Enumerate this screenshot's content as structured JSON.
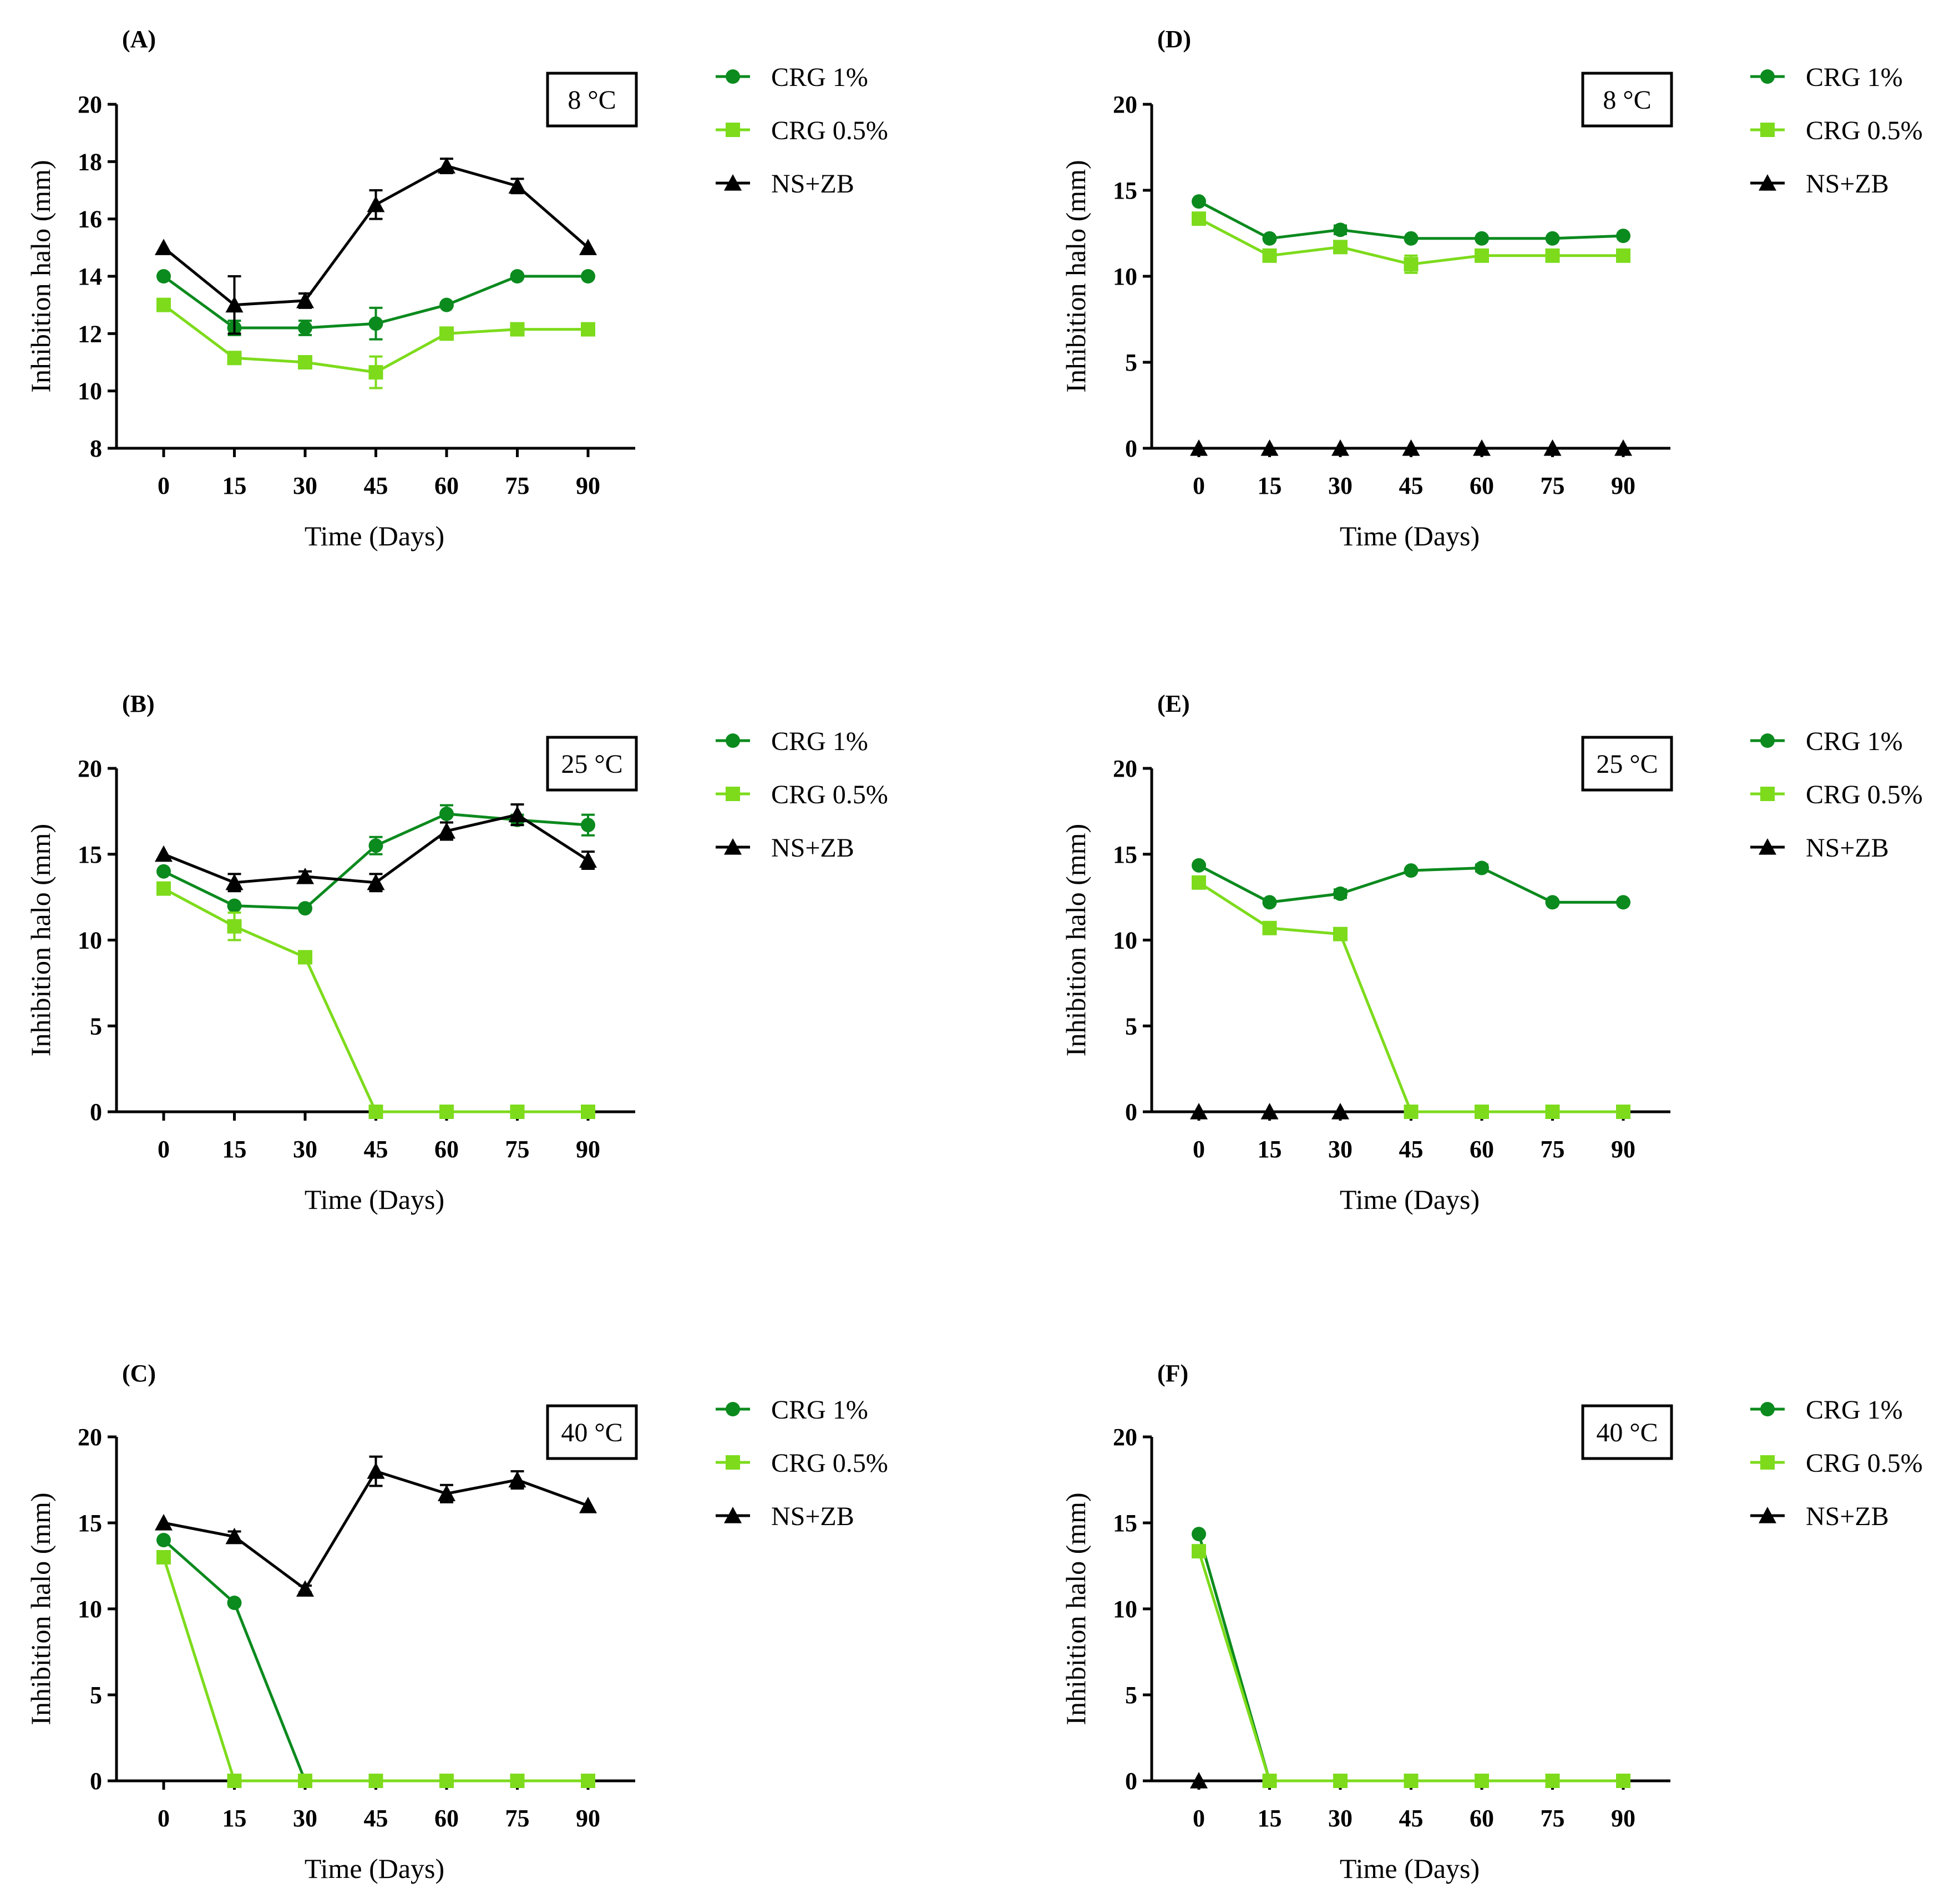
{
  "colors": {
    "crg1": "#0b8a1e",
    "crg05": "#7ddb1c",
    "nszb": "#000000"
  },
  "chart_data": [
    {
      "panel": "(A)",
      "temperature": "8 °C",
      "type": "line",
      "xlabel": "Time (Days)",
      "ylabel": "Inhibition halo (mm)",
      "xticks": [
        "0",
        "15",
        "30",
        "45",
        "60",
        "75",
        "90"
      ],
      "xlim": [
        0,
        90
      ],
      "ylim": [
        8,
        20
      ],
      "yticks": [
        "8",
        "10",
        "12",
        "14",
        "16",
        "18",
        "20"
      ],
      "legend": [
        "CRG 1%",
        "CRG 0.5%",
        "NS+ZB"
      ],
      "series": [
        {
          "name": "CRG 1%",
          "color": "#0b8a1e",
          "marker": "circle",
          "x": [
            0,
            15,
            30,
            45,
            60,
            75,
            90
          ],
          "y": [
            14,
            12.2,
            12.2,
            12.35,
            13,
            14,
            14
          ],
          "err": [
            0,
            0.25,
            0.25,
            0.55,
            0,
            0,
            0
          ]
        },
        {
          "name": "CRG 0.5%",
          "color": "#7ddb1c",
          "marker": "square",
          "x": [
            0,
            15,
            30,
            45,
            60,
            75,
            90
          ],
          "y": [
            13,
            11.15,
            11,
            10.65,
            12,
            12.15,
            12.15
          ],
          "err": [
            0,
            0.2,
            0,
            0.55,
            0,
            0.15,
            0.15
          ]
        },
        {
          "name": "NS+ZB",
          "color": "#000000",
          "marker": "triangle",
          "x": [
            0,
            15,
            30,
            45,
            60,
            75,
            90
          ],
          "y": [
            15,
            13,
            13.15,
            16.5,
            17.85,
            17.15,
            15
          ],
          "err": [
            0,
            1,
            0.25,
            0.5,
            0.25,
            0.25,
            0
          ]
        }
      ]
    },
    {
      "panel": "(B)",
      "temperature": "25 °C",
      "type": "line",
      "xlabel": "Time (Days)",
      "ylabel": "Inhibition halo (mm)",
      "xticks": [
        "0",
        "15",
        "30",
        "45",
        "60",
        "75",
        "90"
      ],
      "xlim": [
        0,
        90
      ],
      "ylim": [
        0,
        20
      ],
      "yticks": [
        "0",
        "5",
        "10",
        "15",
        "20"
      ],
      "legend": [
        "CRG 1%",
        "CRG 0.5%",
        "NS+ZB"
      ],
      "series": [
        {
          "name": "CRG 1%",
          "color": "#0b8a1e",
          "marker": "circle",
          "x": [
            0,
            15,
            30,
            45,
            60,
            75,
            90
          ],
          "y": [
            14,
            12,
            11.85,
            15.5,
            17.35,
            17,
            16.7
          ],
          "err": [
            0,
            0,
            0,
            0.5,
            0.5,
            0.3,
            0.6
          ]
        },
        {
          "name": "CRG 0.5%",
          "color": "#7ddb1c",
          "marker": "square",
          "x": [
            0,
            15,
            30,
            45,
            60,
            75,
            90
          ],
          "y": [
            13,
            10.8,
            9,
            0,
            0,
            0,
            0
          ],
          "err": [
            0,
            0.8,
            0,
            0,
            0,
            0,
            0
          ]
        },
        {
          "name": "NS+ZB",
          "color": "#000000",
          "marker": "triangle",
          "x": [
            0,
            15,
            30,
            45,
            60,
            75,
            90
          ],
          "y": [
            15,
            13.35,
            13.7,
            13.35,
            16.35,
            17.3,
            14.65
          ],
          "err": [
            0,
            0.5,
            0.3,
            0.5,
            0.5,
            0.6,
            0.5
          ]
        }
      ]
    },
    {
      "panel": "(C)",
      "temperature": "40 °C",
      "type": "line",
      "xlabel": "Time (Days)",
      "ylabel": "Inhibition halo (mm)",
      "xticks": [
        "0",
        "15",
        "30",
        "45",
        "60",
        "75",
        "90"
      ],
      "xlim": [
        0,
        90
      ],
      "ylim": [
        0,
        20
      ],
      "yticks": [
        "0",
        "5",
        "10",
        "15",
        "20"
      ],
      "legend": [
        "CRG 1%",
        "CRG 0.5%",
        "NS+ZB"
      ],
      "series": [
        {
          "name": "CRG 1%",
          "color": "#0b8a1e",
          "marker": "circle",
          "x": [
            0,
            15,
            30,
            45,
            60,
            75,
            90
          ],
          "y": [
            14,
            10.35,
            0,
            0,
            0,
            0,
            0
          ],
          "err": [
            0,
            0,
            0,
            0,
            0,
            0,
            0
          ]
        },
        {
          "name": "CRG 0.5%",
          "color": "#7ddb1c",
          "marker": "square",
          "x": [
            0,
            15,
            30,
            45,
            60,
            75,
            90
          ],
          "y": [
            13,
            0,
            0,
            0,
            0,
            0,
            0
          ],
          "err": [
            0,
            0,
            0,
            0,
            0,
            0,
            0
          ]
        },
        {
          "name": "NS+ZB",
          "color": "#000000",
          "marker": "triangle",
          "x": [
            0,
            15,
            30,
            45,
            60,
            75,
            90
          ],
          "y": [
            15,
            14.2,
            11.15,
            18,
            16.7,
            17.5,
            16
          ],
          "err": [
            0,
            0.3,
            0.2,
            0.85,
            0.5,
            0.5,
            0
          ]
        }
      ]
    },
    {
      "panel": "(D)",
      "temperature": "8 °C",
      "type": "line",
      "xlabel": "Time (Days)",
      "ylabel": "Inhibition halo (mm)",
      "xticks": [
        "0",
        "15",
        "30",
        "45",
        "60",
        "75",
        "90"
      ],
      "xlim": [
        0,
        90
      ],
      "ylim": [
        0,
        20
      ],
      "yticks": [
        "0",
        "5",
        "10",
        "15",
        "20"
      ],
      "legend": [
        "CRG 1%",
        "CRG 0.5%",
        "NS+ZB"
      ],
      "series": [
        {
          "name": "CRG 1%",
          "color": "#0b8a1e",
          "marker": "circle",
          "x": [
            0,
            15,
            30,
            45,
            60,
            75,
            90
          ],
          "y": [
            14.35,
            12.2,
            12.7,
            12.2,
            12.2,
            12.2,
            12.35
          ],
          "err": [
            0,
            0,
            0.25,
            0,
            0,
            0,
            0
          ]
        },
        {
          "name": "CRG 0.5%",
          "color": "#7ddb1c",
          "marker": "square",
          "x": [
            0,
            15,
            30,
            45,
            60,
            75,
            90
          ],
          "y": [
            13.35,
            11.2,
            11.7,
            10.7,
            11.2,
            11.2,
            11.2
          ],
          "err": [
            0,
            0,
            0,
            0.5,
            0,
            0,
            0
          ]
        },
        {
          "name": "NS+ZB",
          "color": "#000000",
          "marker": "triangle",
          "x": [
            0,
            15,
            30,
            45,
            60,
            75,
            90
          ],
          "y": [
            0,
            0,
            0,
            0,
            0,
            0,
            0
          ],
          "err": [
            0,
            0,
            0,
            0,
            0,
            0,
            0
          ]
        }
      ]
    },
    {
      "panel": "(E)",
      "temperature": "25 °C",
      "type": "line",
      "xlabel": "Time (Days)",
      "ylabel": "Inhibition halo (mm)",
      "xticks": [
        "0",
        "15",
        "30",
        "45",
        "60",
        "75",
        "90"
      ],
      "xlim": [
        0,
        90
      ],
      "ylim": [
        0,
        20
      ],
      "yticks": [
        "0",
        "5",
        "10",
        "15",
        "20"
      ],
      "legend": [
        "CRG 1%",
        "CRG 0.5%",
        "NS+ZB"
      ],
      "series": [
        {
          "name": "CRG 1%",
          "color": "#0b8a1e",
          "marker": "circle",
          "x": [
            0,
            15,
            30,
            45,
            60,
            75,
            90
          ],
          "y": [
            14.35,
            12.2,
            12.7,
            14.05,
            14.2,
            12.2,
            12.2
          ],
          "err": [
            0,
            0,
            0.25,
            0,
            0.2,
            0,
            0
          ]
        },
        {
          "name": "CRG 0.5%",
          "color": "#7ddb1c",
          "marker": "square",
          "x": [
            0,
            15,
            30,
            45,
            60,
            75,
            90
          ],
          "y": [
            13.35,
            10.7,
            10.35,
            0,
            0,
            0,
            0
          ],
          "err": [
            0,
            0,
            0,
            0,
            0,
            0,
            0
          ]
        },
        {
          "name": "NS+ZB",
          "color": "#000000",
          "marker": "triangle",
          "x": [
            0,
            15,
            30
          ],
          "y": [
            0,
            0,
            0
          ],
          "err": [
            0,
            0,
            0
          ]
        }
      ]
    },
    {
      "panel": "(F)",
      "temperature": "40 °C",
      "type": "line",
      "xlabel": "Time (Days)",
      "ylabel": "Inhibition halo (mm)",
      "xticks": [
        "0",
        "15",
        "30",
        "45",
        "60",
        "75",
        "90"
      ],
      "xlim": [
        0,
        90
      ],
      "ylim": [
        0,
        20
      ],
      "yticks": [
        "0",
        "5",
        "10",
        "15",
        "20"
      ],
      "legend": [
        "CRG 1%",
        "CRG 0.5%",
        "NS+ZB"
      ],
      "series": [
        {
          "name": "CRG 1%",
          "color": "#0b8a1e",
          "marker": "circle",
          "x": [
            0,
            15,
            30,
            45,
            60,
            75,
            90
          ],
          "y": [
            14.35,
            0,
            0,
            0,
            0,
            0,
            0
          ],
          "err": [
            0,
            0,
            0,
            0,
            0,
            0,
            0
          ]
        },
        {
          "name": "CRG 0.5%",
          "color": "#7ddb1c",
          "marker": "square",
          "x": [
            0,
            15,
            30,
            45,
            60,
            75,
            90
          ],
          "y": [
            13.35,
            0,
            0,
            0,
            0,
            0,
            0
          ],
          "err": [
            0,
            0,
            0,
            0,
            0,
            0,
            0
          ]
        },
        {
          "name": "NS+ZB",
          "color": "#000000",
          "marker": "triangle",
          "x": [
            0
          ],
          "y": [
            0
          ],
          "err": [
            0
          ]
        }
      ]
    }
  ]
}
